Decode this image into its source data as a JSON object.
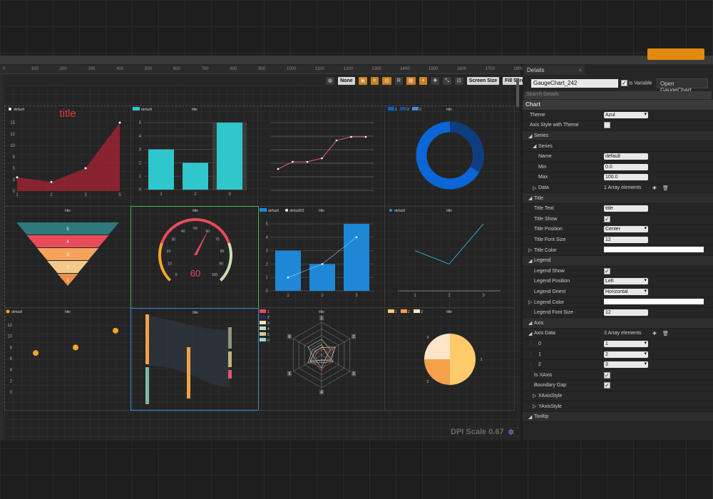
{
  "ruler_marks": [
    "0",
    "100",
    "200",
    "300",
    "400",
    "500",
    "600",
    "700",
    "800",
    "900",
    "1000",
    "1100",
    "1200",
    "1300",
    "1400",
    "1500",
    "1600",
    "1700",
    "1800"
  ],
  "toolbar": {
    "none_label": "None",
    "r_label": "R",
    "screen_size": "Screen Size",
    "fill_screen": "Fill Screen"
  },
  "dpi_scale": "DPI Scale 0.67",
  "details": {
    "tab_title": "Details",
    "widget_name": "GaugeChart_242",
    "is_variable_label": "Is Variable",
    "open_button": "Open GaugeChart",
    "search_placeholder": "Search Details",
    "chart_section": "Chart",
    "theme_label": "Theme",
    "theme_value": "Azul",
    "axis_style_label": "Axis Style with Theme",
    "series_section": "Series",
    "series_sub": "Series",
    "name_label": "Name",
    "name_value": "default",
    "min_label": "Min",
    "min_value": "0.0",
    "max_label": "Max",
    "max_value": "100.0",
    "data_label": "Data",
    "data_value": "1 Array elements",
    "title_section": "Title",
    "title_text_label": "Title Text",
    "title_text_value": "title",
    "title_show_label": "Title Show",
    "title_position_label": "Title Position",
    "title_position_value": "Center",
    "title_font_size_label": "Title Font Size",
    "title_font_size_value": "12",
    "title_color_label": "Title Color",
    "legend_section": "Legend",
    "legend_show_label": "Legend Show",
    "legend_position_label": "Legend Position",
    "legend_position_value": "Left",
    "legend_orient_label": "Legend Orient",
    "legend_orient_value": "Horizontal",
    "legend_color_label": "Legend Color",
    "legend_font_size_label": "Legend Font Size",
    "legend_font_size_value": "12",
    "axis_section": "Axis",
    "axis_data_label": "Axis Data",
    "axis_data_value": "3 Array elements",
    "axis_items": [
      {
        "index": "0",
        "value": "1"
      },
      {
        "index": "1",
        "value": "2"
      },
      {
        "index": "2",
        "value": "3"
      }
    ],
    "is_xaxis_label": "Is XAxis",
    "boundary_gap_label": "Boundary Gap",
    "xaxis_style_label": "XAxisStyle",
    "yaxis_style_label": "YAxisStyle",
    "tooltip_section": "Tooltip"
  },
  "charts": {
    "area": {
      "legend": "default",
      "title": "title",
      "x": [
        "1",
        "2",
        "3",
        "5"
      ],
      "y_ticks": [
        "0",
        "3",
        "5",
        "8",
        "10",
        "12",
        "15"
      ],
      "values": [
        3,
        2,
        5,
        15
      ],
      "color": "#b22234"
    },
    "bar": {
      "legend": "default",
      "title": "title",
      "x": [
        "1",
        "2",
        "3"
      ],
      "y_ticks": [
        "0",
        "1",
        "2",
        "3",
        "4",
        "5"
      ],
      "values": [
        3,
        2,
        5
      ],
      "color": "#2ec8cc"
    },
    "line": {
      "values": [
        3,
        4,
        4,
        4.5,
        7,
        7.5,
        7.5
      ]
    },
    "donut": {
      "legend": [
        "1",
        "2",
        "3"
      ],
      "title": "title"
    },
    "funnel": {
      "title": "title",
      "labels": [
        "5",
        "4",
        "3",
        "2",
        "1"
      ],
      "colors": [
        "#2c7a7b",
        "#e84b5a",
        "#f5a35c",
        "#f3c98a",
        "#ee8f4e"
      ]
    },
    "gauge": {
      "title": "title",
      "value": "60",
      "ticks": [
        "0",
        "10",
        "20",
        "30",
        "40",
        "50",
        "60",
        "70",
        "80",
        "90",
        "100"
      ]
    },
    "barline": {
      "legend": [
        "default",
        "default02"
      ],
      "title": "title",
      "x": [
        "1",
        "2",
        "3"
      ],
      "y_ticks": [
        "0",
        "1",
        "2",
        "3",
        "4",
        "5"
      ],
      "bars": [
        3,
        2,
        5
      ],
      "line": [
        1,
        2,
        4
      ]
    },
    "line2": {
      "legend": "default",
      "title": "title",
      "x": [
        "1",
        "2",
        "3"
      ],
      "values": [
        3,
        2,
        5
      ]
    },
    "scatter": {
      "legend": "default",
      "title": "title",
      "y_ticks": [
        "0",
        "2",
        "4",
        "6",
        "8",
        "10",
        "12"
      ],
      "points": [
        [
          1,
          7
        ],
        [
          3,
          8
        ],
        [
          5,
          11
        ]
      ]
    },
    "sankey": {
      "title": "title",
      "legend": [
        "1",
        "2",
        "3",
        "4",
        "5",
        "6"
      ]
    },
    "radar": {
      "title": "title",
      "labels": [
        "1",
        "2",
        "3",
        "4",
        "5",
        "6"
      ]
    },
    "pie": {
      "legend": [
        "1",
        "2",
        "3"
      ],
      "title": "title",
      "labels": [
        "1",
        "2",
        "3"
      ],
      "values": [
        50,
        25,
        25
      ]
    }
  }
}
